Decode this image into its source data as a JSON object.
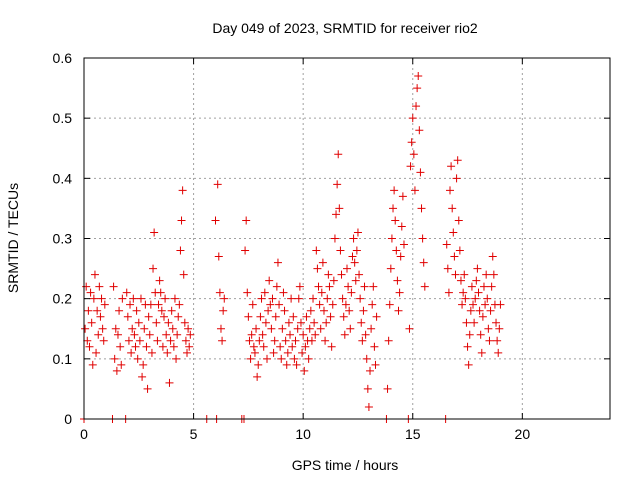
{
  "chart_data": {
    "type": "scatter",
    "title": "Day 049 of 2023, SRMTID for receiver rio2",
    "xlabel": "GPS time / hours",
    "ylabel": "SRMTID / TECUs",
    "xlim": [
      0,
      24
    ],
    "ylim": [
      0,
      0.6
    ],
    "xticks": [
      0,
      5,
      10,
      15,
      20
    ],
    "yticks": [
      0,
      0.1,
      0.2,
      0.3,
      0.4,
      0.5,
      0.6
    ],
    "xtick_labels": [
      "0",
      "5",
      "10",
      "15",
      "20"
    ],
    "ytick_labels": [
      "0",
      "0.1",
      "0.2",
      "0.3",
      "0.4",
      "0.5",
      "0.6"
    ],
    "grid": true,
    "marker": "plus",
    "color": "#e00000",
    "series": [
      {
        "name": "rio2",
        "points": [
          [
            0.0,
            0.0
          ],
          [
            0.05,
            0.15
          ],
          [
            0.1,
            0.22
          ],
          [
            0.15,
            0.13
          ],
          [
            0.2,
            0.18
          ],
          [
            0.25,
            0.12
          ],
          [
            0.3,
            0.21
          ],
          [
            0.35,
            0.16
          ],
          [
            0.4,
            0.09
          ],
          [
            0.45,
            0.2
          ],
          [
            0.5,
            0.24
          ],
          [
            0.55,
            0.11
          ],
          [
            0.6,
            0.18
          ],
          [
            0.65,
            0.14
          ],
          [
            0.7,
            0.22
          ],
          [
            0.75,
            0.17
          ],
          [
            0.8,
            0.2
          ],
          [
            0.85,
            0.15
          ],
          [
            0.9,
            0.13
          ],
          [
            0.95,
            0.19
          ],
          [
            1.3,
            0.0
          ],
          [
            1.35,
            0.22
          ],
          [
            1.4,
            0.1
          ],
          [
            1.45,
            0.15
          ],
          [
            1.5,
            0.08
          ],
          [
            1.55,
            0.14
          ],
          [
            1.6,
            0.18
          ],
          [
            1.65,
            0.12
          ],
          [
            1.7,
            0.09
          ],
          [
            1.75,
            0.2
          ],
          [
            1.9,
            0.0
          ],
          [
            1.95,
            0.21
          ],
          [
            2.0,
            0.17
          ],
          [
            2.05,
            0.13
          ],
          [
            2.1,
            0.19
          ],
          [
            2.15,
            0.11
          ],
          [
            2.2,
            0.15
          ],
          [
            2.25,
            0.2
          ],
          [
            2.3,
            0.14
          ],
          [
            2.35,
            0.12
          ],
          [
            2.4,
            0.18
          ],
          [
            2.45,
            0.1
          ],
          [
            2.5,
            0.16
          ],
          [
            2.55,
            0.13
          ],
          [
            2.6,
            0.2
          ],
          [
            2.65,
            0.07
          ],
          [
            2.7,
            0.09
          ],
          [
            2.75,
            0.15
          ],
          [
            2.8,
            0.19
          ],
          [
            2.85,
            0.12
          ],
          [
            2.9,
            0.05
          ],
          [
            2.95,
            0.17
          ],
          [
            3.0,
            0.14
          ],
          [
            3.05,
            0.19
          ],
          [
            3.1,
            0.11
          ],
          [
            3.15,
            0.25
          ],
          [
            3.2,
            0.31
          ],
          [
            3.25,
            0.21
          ],
          [
            3.3,
            0.16
          ],
          [
            3.35,
            0.13
          ],
          [
            3.4,
            0.19
          ],
          [
            3.45,
            0.23
          ],
          [
            3.5,
            0.21
          ],
          [
            3.55,
            0.18
          ],
          [
            3.6,
            0.12
          ],
          [
            3.65,
            0.17
          ],
          [
            3.7,
            0.2
          ],
          [
            3.75,
            0.14
          ],
          [
            3.8,
            0.11
          ],
          [
            3.85,
            0.16
          ],
          [
            3.9,
            0.06
          ],
          [
            3.95,
            0.13
          ],
          [
            4.0,
            0.18
          ],
          [
            4.05,
            0.15
          ],
          [
            4.1,
            0.12
          ],
          [
            4.15,
            0.2
          ],
          [
            4.2,
            0.1
          ],
          [
            4.25,
            0.14
          ],
          [
            4.3,
            0.17
          ],
          [
            4.35,
            0.19
          ],
          [
            4.4,
            0.28
          ],
          [
            4.45,
            0.33
          ],
          [
            4.5,
            0.38
          ],
          [
            4.55,
            0.24
          ],
          [
            4.6,
            0.16
          ],
          [
            4.65,
            0.13
          ],
          [
            4.7,
            0.11
          ],
          [
            4.75,
            0.15
          ],
          [
            4.8,
            0.12
          ],
          [
            4.85,
            0.14
          ],
          [
            5.6,
            0.0
          ],
          [
            6.0,
            0.33
          ],
          [
            6.05,
            0.0
          ],
          [
            6.1,
            0.39
          ],
          [
            6.15,
            0.27
          ],
          [
            6.2,
            0.21
          ],
          [
            6.25,
            0.15
          ],
          [
            6.3,
            0.13
          ],
          [
            6.35,
            0.18
          ],
          [
            6.4,
            0.2
          ],
          [
            7.2,
            0.0
          ],
          [
            7.3,
            0.0
          ],
          [
            7.35,
            0.28
          ],
          [
            7.4,
            0.33
          ],
          [
            7.45,
            0.21
          ],
          [
            7.5,
            0.17
          ],
          [
            7.55,
            0.13
          ],
          [
            7.6,
            0.1
          ],
          [
            7.65,
            0.14
          ],
          [
            7.7,
            0.19
          ],
          [
            7.75,
            0.12
          ],
          [
            7.8,
            0.11
          ],
          [
            7.85,
            0.15
          ],
          [
            7.9,
            0.07
          ],
          [
            7.95,
            0.09
          ],
          [
            8.0,
            0.13
          ],
          [
            8.05,
            0.17
          ],
          [
            8.1,
            0.2
          ],
          [
            8.15,
            0.14
          ],
          [
            8.2,
            0.12
          ],
          [
            8.25,
            0.21
          ],
          [
            8.3,
            0.16
          ],
          [
            8.35,
            0.1
          ],
          [
            8.4,
            0.18
          ],
          [
            8.45,
            0.23
          ],
          [
            8.5,
            0.19
          ],
          [
            8.55,
            0.15
          ],
          [
            8.6,
            0.2
          ],
          [
            8.65,
            0.11
          ],
          [
            8.7,
            0.13
          ],
          [
            8.75,
            0.17
          ],
          [
            8.8,
            0.22
          ],
          [
            8.85,
            0.26
          ],
          [
            8.9,
            0.19
          ],
          [
            8.95,
            0.12
          ],
          [
            9.0,
            0.1
          ],
          [
            9.05,
            0.15
          ],
          [
            9.1,
            0.21
          ],
          [
            9.15,
            0.18
          ],
          [
            9.2,
            0.13
          ],
          [
            9.25,
            0.09
          ],
          [
            9.3,
            0.11
          ],
          [
            9.35,
            0.16
          ],
          [
            9.4,
            0.14
          ],
          [
            9.45,
            0.2
          ],
          [
            9.5,
            0.12
          ],
          [
            9.55,
            0.17
          ],
          [
            9.6,
            0.1
          ],
          [
            9.65,
            0.13
          ],
          [
            9.7,
            0.09
          ],
          [
            9.75,
            0.15
          ],
          [
            9.8,
            0.2
          ],
          [
            9.85,
            0.22
          ],
          [
            9.9,
            0.16
          ],
          [
            9.95,
            0.11
          ],
          [
            10.0,
            0.14
          ],
          [
            10.05,
            0.08
          ],
          [
            10.1,
            0.12
          ],
          [
            10.15,
            0.17
          ],
          [
            10.2,
            0.13
          ],
          [
            10.25,
            0.1
          ],
          [
            10.3,
            0.15
          ],
          [
            10.35,
            0.18
          ],
          [
            10.4,
            0.13
          ],
          [
            10.45,
            0.2
          ],
          [
            10.5,
            0.16
          ],
          [
            10.55,
            0.14
          ],
          [
            10.6,
            0.28
          ],
          [
            10.65,
            0.25
          ],
          [
            10.7,
            0.22
          ],
          [
            10.75,
            0.19
          ],
          [
            10.8,
            0.15
          ],
          [
            10.85,
            0.21
          ],
          [
            10.9,
            0.26
          ],
          [
            10.95,
            0.18
          ],
          [
            11.0,
            0.13
          ],
          [
            11.05,
            0.16
          ],
          [
            11.1,
            0.2
          ],
          [
            11.15,
            0.24
          ],
          [
            11.2,
            0.22
          ],
          [
            11.25,
            0.17
          ],
          [
            11.3,
            0.12
          ],
          [
            11.35,
            0.19
          ],
          [
            11.4,
            0.23
          ],
          [
            11.45,
            0.3
          ],
          [
            11.5,
            0.34
          ],
          [
            11.55,
            0.39
          ],
          [
            11.6,
            0.44
          ],
          [
            11.65,
            0.35
          ],
          [
            11.7,
            0.28
          ],
          [
            11.75,
            0.24
          ],
          [
            11.8,
            0.2
          ],
          [
            11.85,
            0.17
          ],
          [
            11.9,
            0.14
          ],
          [
            11.95,
            0.19
          ],
          [
            12.0,
            0.25
          ],
          [
            12.05,
            0.22
          ],
          [
            12.1,
            0.18
          ],
          [
            12.15,
            0.15
          ],
          [
            12.2,
            0.21
          ],
          [
            12.25,
            0.27
          ],
          [
            12.3,
            0.3
          ],
          [
            12.35,
            0.26
          ],
          [
            12.4,
            0.23
          ],
          [
            12.45,
            0.28
          ],
          [
            12.5,
            0.31
          ],
          [
            12.55,
            0.24
          ],
          [
            12.6,
            0.2
          ],
          [
            12.65,
            0.16
          ],
          [
            12.7,
            0.13
          ],
          [
            12.75,
            0.18
          ],
          [
            12.8,
            0.22
          ],
          [
            12.85,
            0.14
          ],
          [
            12.9,
            0.1
          ],
          [
            12.95,
            0.05
          ],
          [
            13.0,
            0.02
          ],
          [
            13.05,
            0.08
          ],
          [
            13.1,
            0.15
          ],
          [
            13.15,
            0.19
          ],
          [
            13.2,
            0.22
          ],
          [
            13.25,
            0.12
          ],
          [
            13.3,
            0.09
          ],
          [
            13.35,
            0.17
          ],
          [
            13.8,
            0.0
          ],
          [
            13.85,
            0.05
          ],
          [
            13.9,
            0.13
          ],
          [
            13.95,
            0.19
          ],
          [
            14.0,
            0.25
          ],
          [
            14.05,
            0.3
          ],
          [
            14.1,
            0.35
          ],
          [
            14.15,
            0.38
          ],
          [
            14.2,
            0.33
          ],
          [
            14.25,
            0.28
          ],
          [
            14.3,
            0.23
          ],
          [
            14.35,
            0.18
          ],
          [
            14.4,
            0.21
          ],
          [
            14.45,
            0.27
          ],
          [
            14.5,
            0.32
          ],
          [
            14.55,
            0.37
          ],
          [
            14.6,
            0.29
          ],
          [
            14.8,
            0.0
          ],
          [
            14.85,
            0.15
          ],
          [
            14.9,
            0.42
          ],
          [
            14.95,
            0.46
          ],
          [
            15.0,
            0.5
          ],
          [
            15.05,
            0.44
          ],
          [
            15.1,
            0.38
          ],
          [
            15.15,
            0.52
          ],
          [
            15.2,
            0.55
          ],
          [
            15.25,
            0.57
          ],
          [
            15.3,
            0.48
          ],
          [
            15.35,
            0.41
          ],
          [
            15.4,
            0.35
          ],
          [
            15.45,
            0.3
          ],
          [
            15.5,
            0.26
          ],
          [
            15.55,
            0.22
          ],
          [
            16.5,
            0.0
          ],
          [
            16.55,
            0.29
          ],
          [
            16.6,
            0.25
          ],
          [
            16.65,
            0.21
          ],
          [
            16.7,
            0.38
          ],
          [
            16.75,
            0.42
          ],
          [
            16.8,
            0.35
          ],
          [
            16.85,
            0.31
          ],
          [
            16.9,
            0.27
          ],
          [
            16.95,
            0.24
          ],
          [
            17.0,
            0.4
          ],
          [
            17.05,
            0.43
          ],
          [
            17.1,
            0.33
          ],
          [
            17.15,
            0.28
          ],
          [
            17.2,
            0.23
          ],
          [
            17.25,
            0.19
          ],
          [
            17.3,
            0.21
          ],
          [
            17.35,
            0.24
          ],
          [
            17.4,
            0.2
          ],
          [
            17.45,
            0.16
          ],
          [
            17.5,
            0.12
          ],
          [
            17.55,
            0.09
          ],
          [
            17.6,
            0.14
          ],
          [
            17.65,
            0.18
          ],
          [
            17.7,
            0.22
          ],
          [
            17.75,
            0.19
          ],
          [
            17.8,
            0.16
          ],
          [
            17.85,
            0.2
          ],
          [
            17.9,
            0.23
          ],
          [
            17.95,
            0.25
          ],
          [
            18.0,
            0.21
          ],
          [
            18.05,
            0.18
          ],
          [
            18.1,
            0.14
          ],
          [
            18.15,
            0.11
          ],
          [
            18.2,
            0.17
          ],
          [
            18.25,
            0.22
          ],
          [
            18.3,
            0.19
          ],
          [
            18.35,
            0.24
          ],
          [
            18.4,
            0.2
          ],
          [
            18.45,
            0.15
          ],
          [
            18.5,
            0.13
          ],
          [
            18.55,
            0.18
          ],
          [
            18.6,
            0.22
          ],
          [
            18.65,
            0.27
          ],
          [
            18.7,
            0.24
          ],
          [
            18.75,
            0.19
          ],
          [
            18.8,
            0.16
          ],
          [
            18.85,
            0.13
          ],
          [
            18.9,
            0.11
          ],
          [
            18.95,
            0.15
          ],
          [
            19.0,
            0.19
          ]
        ]
      }
    ]
  }
}
